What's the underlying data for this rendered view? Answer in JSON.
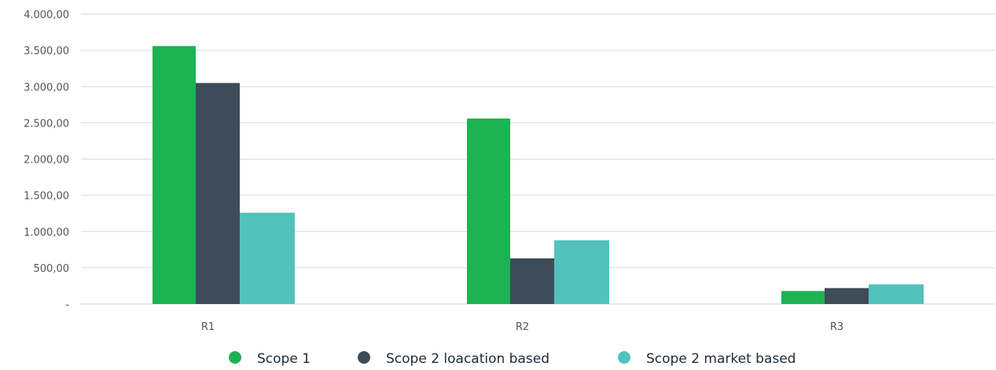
{
  "chart_data": {
    "type": "bar",
    "categories": [
      "R1",
      "R2",
      "R3"
    ],
    "series": [
      {
        "name": "Scope 1",
        "color": "#1db254",
        "values": [
          3560,
          2560,
          180
        ]
      },
      {
        "name": "Scope 2 loacation based",
        "color": "#3e4c59",
        "values": [
          3050,
          630,
          220
        ]
      },
      {
        "name": "Scope 2 market based",
        "color": "#52c2bd",
        "values": [
          1260,
          880,
          270
        ]
      }
    ],
    "ylim": [
      0,
      4000
    ],
    "yticks": [
      0,
      500,
      1000,
      1500,
      2000,
      2500,
      3000,
      3500,
      4000
    ],
    "ytick_labels": [
      "-",
      "500,00",
      "1.000,00",
      "1.500,00",
      "2.000,00",
      "2.500,00",
      "3.000,00",
      "3.500,00",
      "4.000,00"
    ],
    "grid": true,
    "legend_position": "bottom"
  }
}
